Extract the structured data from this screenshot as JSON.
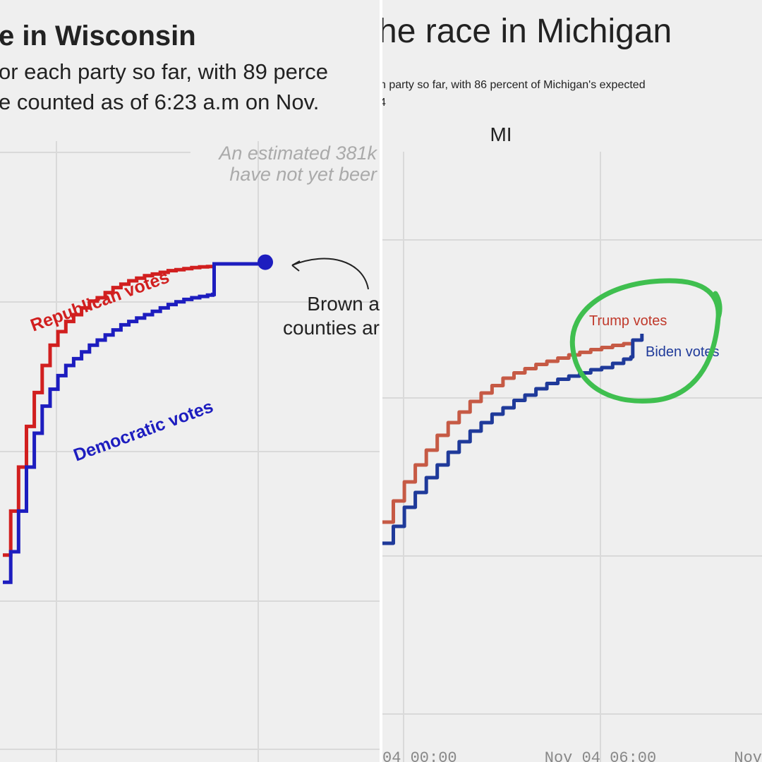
{
  "colors": {
    "republican": "#d11f1f",
    "democratic": "#1d1dbf",
    "trump": "#c65a45",
    "biden": "#1f3a9a",
    "annotation_circle": "#3fbf4f",
    "grid": "#d9d9d9",
    "background": "#efefef"
  },
  "chart_data": [
    {
      "type": "line",
      "title": "e in Wisconsin",
      "subtitle_lines": [
        "or each party so far, with 89 perce",
        "e counted as of 6:23 a.m on Nov."
      ],
      "xlabel": "",
      "ylabel": "",
      "grid": true,
      "legend": "inline labels",
      "annotation_lines": [
        "An estimated 381k",
        "have not yet beer"
      ],
      "callout_lines": [
        "Brown a",
        "counties ar"
      ],
      "x": [
        0,
        3,
        6,
        9,
        12,
        15,
        18,
        21,
        24,
        27,
        30,
        33,
        36,
        39,
        42,
        45,
        48,
        51,
        54,
        57,
        60,
        63,
        66,
        69,
        72,
        75,
        78,
        80,
        80.5,
        100
      ],
      "series": [
        {
          "name": "Republican votes",
          "values": [
            9,
            22,
            35,
            47,
            57,
            65,
            71,
            75,
            78,
            80,
            82,
            84,
            85,
            86.5,
            88,
            89,
            90,
            90.8,
            91.5,
            92,
            92.5,
            93,
            93.3,
            93.6,
            93.9,
            94.1,
            94.2,
            94.3,
            null,
            null
          ]
        },
        {
          "name": "Democratic votes",
          "values": [
            1,
            10,
            22,
            35,
            45,
            53,
            58,
            62,
            65,
            67,
            69,
            71,
            72.5,
            74,
            75.5,
            77,
            78,
            79,
            80,
            81,
            82,
            83,
            83.8,
            84.5,
            85,
            85.4,
            85.8,
            86,
            95,
            95.5
          ]
        }
      ]
    },
    {
      "type": "line",
      "title": "he race in Michigan",
      "subtitle_lines": [
        "h party so far, with 86 percent of Michigan's expected",
        "4"
      ],
      "state_label": "MI",
      "xlabel": "",
      "ylabel": "",
      "grid": true,
      "legend": "inline labels",
      "x_ticks": [
        "04 00:00",
        "Nov 04 06:00",
        "Nov"
      ],
      "x": [
        0,
        3,
        6,
        9,
        12,
        15,
        18,
        21,
        24,
        27,
        30,
        33,
        36,
        39,
        42,
        45,
        48,
        51,
        54,
        57,
        60,
        63,
        66,
        68,
        68.5,
        71
      ],
      "series": [
        {
          "name": "Trump votes",
          "values": [
            10,
            20,
            29,
            37,
            44,
            51,
            57,
            62,
            67,
            71,
            74.5,
            78,
            80.5,
            82.5,
            84.5,
            86,
            87.5,
            89,
            90.2,
            91.5,
            92.5,
            93.5,
            94.3,
            95,
            null,
            null
          ]
        },
        {
          "name": "Biden votes",
          "values": [
            0,
            8,
            17,
            24,
            31,
            37,
            43,
            48,
            53,
            57,
            61,
            64,
            67.5,
            70,
            73,
            75.5,
            77.5,
            79,
            80.5,
            82,
            83,
            85,
            87,
            88,
            96,
            99
          ]
        }
      ]
    }
  ]
}
